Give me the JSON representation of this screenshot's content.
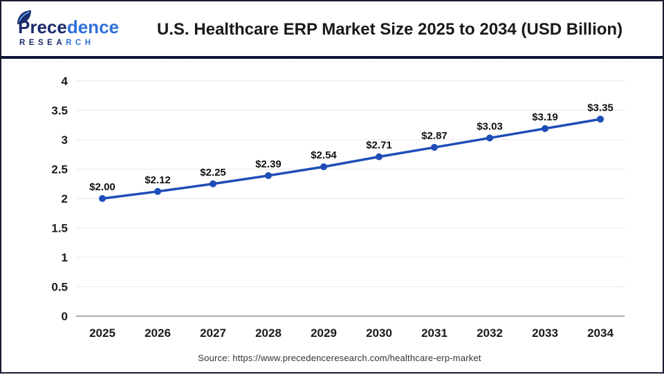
{
  "header": {
    "logo": {
      "word_dark": "Prece",
      "word_blue": "dence",
      "sub_dark": "RESEA",
      "sub_blue": "RCH",
      "leaf_icon": "leaf-icon"
    },
    "title": "U.S. Healthcare ERP Market Size 2025 to 2034 (USD Billion)"
  },
  "chart_data": {
    "type": "line",
    "title": "U.S. Healthcare ERP Market Size 2025 to 2034 (USD Billion)",
    "categories": [
      "2025",
      "2026",
      "2027",
      "2028",
      "2029",
      "2030",
      "2031",
      "2032",
      "2033",
      "2034"
    ],
    "values": [
      2.0,
      2.12,
      2.25,
      2.39,
      2.54,
      2.71,
      2.87,
      3.03,
      3.19,
      3.35
    ],
    "point_labels": [
      "$2.00",
      "$2.12",
      "$2.25",
      "$2.39",
      "$2.54",
      "$2.71",
      "$2.87",
      "$3.03",
      "$3.19",
      "$3.35"
    ],
    "xlabel": "",
    "ylabel": "",
    "ylim": [
      0,
      4
    ],
    "yticks": [
      "0",
      "0.5",
      "1",
      "1.5",
      "2",
      "2.5",
      "3",
      "3.5",
      "4"
    ],
    "grid": true,
    "legend_position": "none",
    "line_color": "#1e4db7",
    "marker": "circle",
    "grid_color": "#ececec",
    "axis_line_color": "#a9a9a9",
    "tick_label_color": "#1a1a1a",
    "point_label_color": "#111111"
  },
  "footer": {
    "source": "Source: https://www.precedenceresearch.com/healthcare-erp-market"
  },
  "colors": {
    "logo_dark": "#1b2a6b",
    "logo_blue": "#2f6fd8",
    "divider_navy": "#0d1333",
    "frame_border": "#181b2e"
  }
}
